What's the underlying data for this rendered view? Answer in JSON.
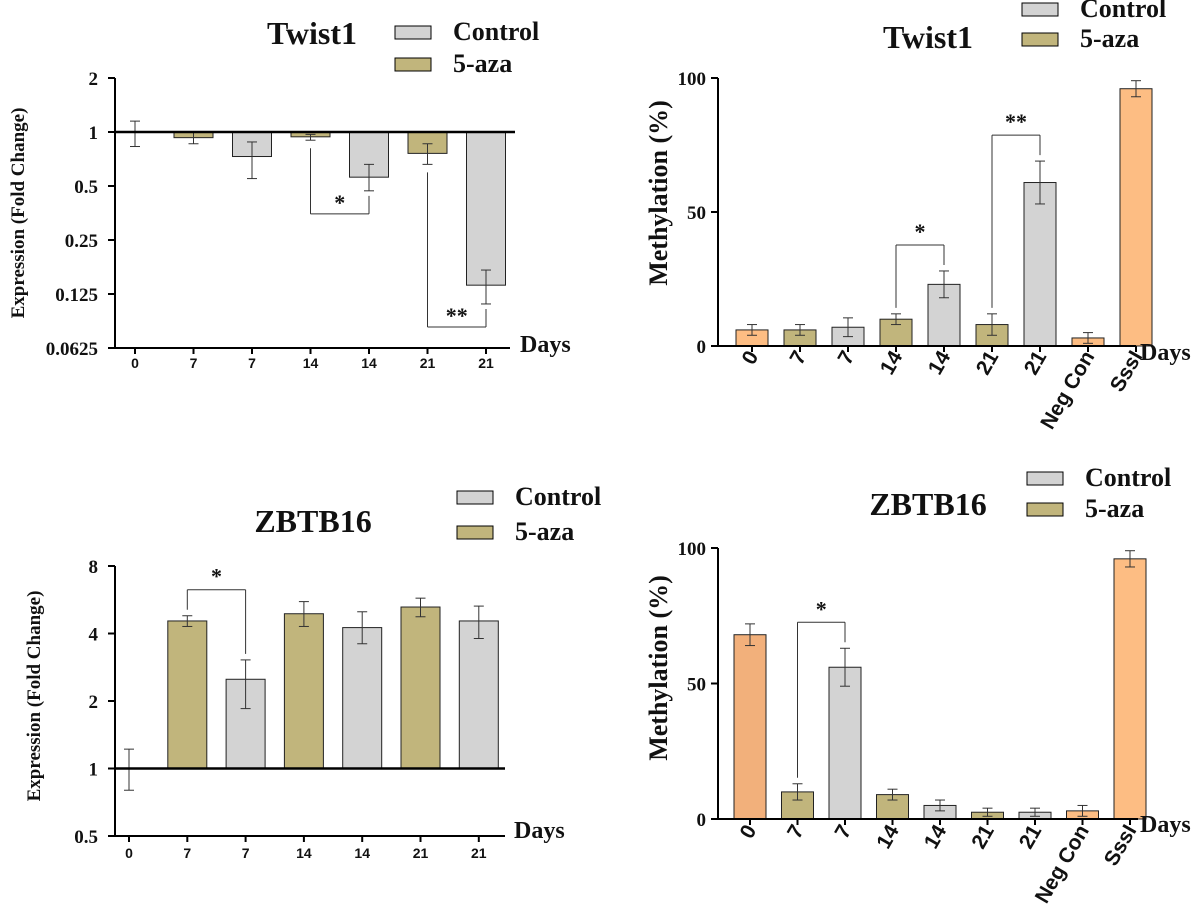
{
  "colors": {
    "control": "#d3d3d3",
    "aza": "#c1b57c",
    "orange": "#fdbd83",
    "orange_dark": "#f2b07b",
    "axis": "#000000"
  },
  "chart_data": [
    {
      "type": "bar",
      "title": "Twist1",
      "ylabel": "Expression (Fold Change)",
      "xlabel": "Days",
      "yscale": "log2",
      "ylim": [
        0.0625,
        2
      ],
      "baseline": 1,
      "yticks": [
        "2",
        "1",
        "0.5",
        "0.25",
        "0.125",
        "0.0625"
      ],
      "ytick_values": [
        2,
        1,
        0.5,
        0.25,
        0.125,
        0.0625
      ],
      "categories": [
        "0",
        "7",
        "7",
        "14",
        "14",
        "21",
        "21"
      ],
      "groups": [
        "control",
        "aza",
        "control",
        "aza",
        "control",
        "aza",
        "control"
      ],
      "values": [
        1.0,
        0.93,
        0.73,
        0.94,
        0.56,
        0.76,
        0.14
      ],
      "errors_low": [
        0.83,
        0.86,
        0.55,
        0.9,
        0.47,
        0.66,
        0.11
      ],
      "errors_high": [
        1.15,
        1.0,
        0.88,
        0.97,
        0.66,
        0.86,
        0.17
      ],
      "legend": [
        {
          "label": "Control",
          "group": "control"
        },
        {
          "label": "5-aza",
          "group": "aza"
        }
      ],
      "legend_position": "top-right",
      "significance": [
        {
          "from": 3,
          "to": 4,
          "label": "*",
          "side": "below"
        },
        {
          "from": 5,
          "to": 6,
          "label": "**",
          "side": "below"
        }
      ]
    },
    {
      "type": "bar",
      "title": "Twist1",
      "ylabel": "Methylation (%)",
      "xlabel": "Days",
      "ylim": [
        0,
        100
      ],
      "yticks": [
        "0",
        "50",
        "100"
      ],
      "ytick_values": [
        0,
        50,
        100
      ],
      "categories": [
        "0",
        "7",
        "7",
        "14",
        "14",
        "21",
        "21",
        "Neg Con",
        "SssI"
      ],
      "groups": [
        "orange",
        "aza",
        "control",
        "aza",
        "control",
        "aza",
        "control",
        "orange",
        "orange"
      ],
      "values": [
        6,
        6,
        7,
        10,
        23,
        8,
        61,
        3,
        96
      ],
      "errors": [
        2,
        2,
        3.5,
        2,
        5,
        4,
        8,
        2,
        3
      ],
      "legend": [
        {
          "label": "Control",
          "group": "control"
        },
        {
          "label": "5-aza",
          "group": "aza"
        }
      ],
      "legend_position": "top-right",
      "significance": [
        {
          "from": 3,
          "to": 4,
          "label": "*",
          "side": "above"
        },
        {
          "from": 5,
          "to": 6,
          "label": "**",
          "side": "above"
        }
      ]
    },
    {
      "type": "bar",
      "title": "ZBTB16",
      "ylabel": "Expression (Fold Change)",
      "xlabel": "Days",
      "yscale": "log2",
      "ylim": [
        0.5,
        8
      ],
      "baseline": 1,
      "yticks": [
        "8",
        "4",
        "2",
        "1",
        "0.5"
      ],
      "ytick_values": [
        8,
        4,
        2,
        1,
        0.5
      ],
      "categories": [
        "0",
        "7",
        "7",
        "14",
        "14",
        "21",
        "21"
      ],
      "groups": [
        "control",
        "aza",
        "control",
        "aza",
        "control",
        "aza",
        "control"
      ],
      "values": [
        1.0,
        4.55,
        2.5,
        4.9,
        4.25,
        5.25,
        4.55
      ],
      "errors_low": [
        0.8,
        4.3,
        1.85,
        4.3,
        3.6,
        4.75,
        3.8
      ],
      "errors_high": [
        1.22,
        4.8,
        3.05,
        5.55,
        5.0,
        5.75,
        5.3
      ],
      "legend": [
        {
          "label": "Control",
          "group": "control"
        },
        {
          "label": "5-aza",
          "group": "aza"
        }
      ],
      "legend_position": "top-right",
      "significance": [
        {
          "from": 1,
          "to": 2,
          "label": "*",
          "side": "above"
        }
      ]
    },
    {
      "type": "bar",
      "title": "ZBTB16",
      "ylabel": "Methylation (%)",
      "xlabel": "Days",
      "ylim": [
        0,
        100
      ],
      "yticks": [
        "0",
        "50",
        "100"
      ],
      "ytick_values": [
        0,
        50,
        100
      ],
      "categories": [
        "0",
        "7",
        "7",
        "14",
        "14",
        "21",
        "21",
        "Neg Con",
        "SssI"
      ],
      "groups": [
        "orange_dark",
        "aza",
        "control",
        "aza",
        "control",
        "aza",
        "control",
        "orange",
        "orange"
      ],
      "values": [
        68,
        10,
        56,
        9,
        5,
        2.5,
        2.5,
        3,
        96
      ],
      "errors": [
        4,
        3,
        7,
        2,
        2,
        1.5,
        1.5,
        2,
        3
      ],
      "legend": [
        {
          "label": "Control",
          "group": "control"
        },
        {
          "label": "5-aza",
          "group": "aza"
        }
      ],
      "legend_position": "top-right",
      "significance": [
        {
          "from": 1,
          "to": 2,
          "label": "*",
          "side": "above"
        }
      ]
    }
  ]
}
